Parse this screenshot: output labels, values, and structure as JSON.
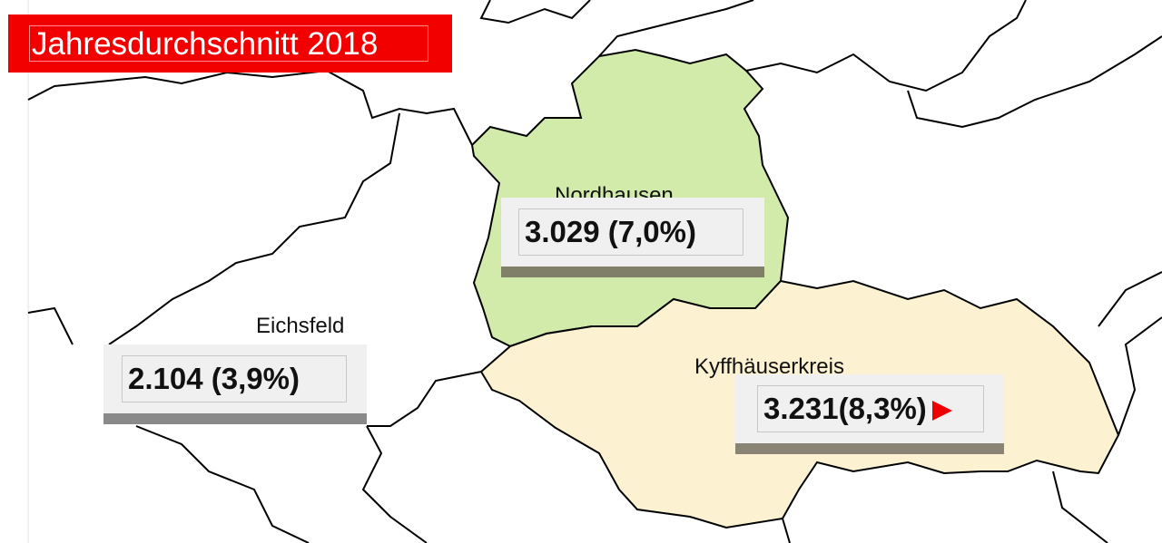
{
  "title": "Jahresdurchschnitt 2018",
  "regions": [
    {
      "name": "Nordhausen",
      "value": "3.029 (7,0%)",
      "fill": "#d2ebab"
    },
    {
      "name": "Eichsfeld",
      "value": "2.104 (3,9%)",
      "fill": "#ffffff"
    },
    {
      "name": "Kyffhäuserkreis",
      "value": "3.231(8,3%)",
      "fill": "#fcf2d2",
      "trend_icon": "triangle-right-icon",
      "trend_color": "#e00000"
    }
  ],
  "colors": {
    "banner": "#f20000",
    "boundary": "#000000"
  }
}
